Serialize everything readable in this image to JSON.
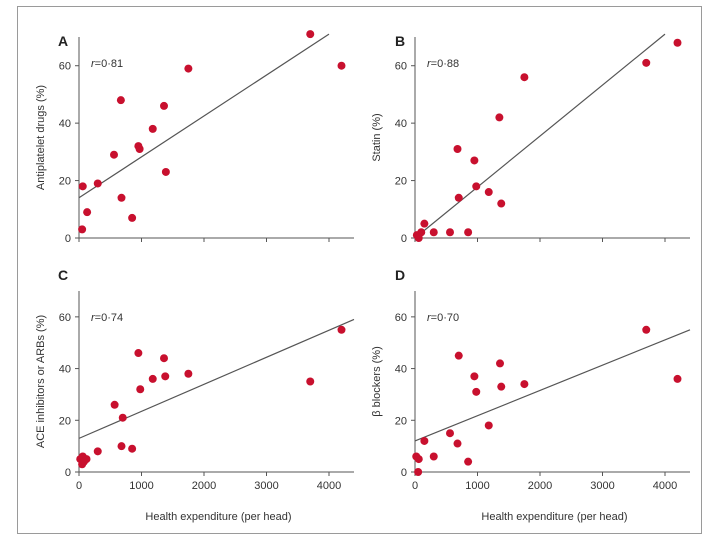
{
  "colors": {
    "point": "#c8102e",
    "line": "#555555",
    "axis": "#555555"
  },
  "chart_data": [
    {
      "type": "scatter",
      "panel": "A",
      "r_prefix": "r",
      "r_value": "=0·81",
      "ylabel": "Antiplatelet drugs (%)",
      "xlabel": "",
      "xlim": [
        0,
        4400
      ],
      "ylim": [
        0,
        70
      ],
      "xticks": [
        0,
        1000,
        2000,
        3000,
        4000
      ],
      "yticks": [
        0,
        20,
        40,
        60
      ],
      "xticks_shown": false,
      "x": [
        50,
        60,
        130,
        300,
        560,
        670,
        680,
        850,
        950,
        970,
        1180,
        1360,
        1390,
        1750,
        3700,
        4200
      ],
      "y": [
        3,
        18,
        9,
        19,
        29,
        48,
        14,
        7,
        32,
        31,
        38,
        46,
        23,
        59,
        71,
        60
      ],
      "fit": {
        "x": [
          0,
          4000
        ],
        "y": [
          14,
          71
        ]
      }
    },
    {
      "type": "scatter",
      "panel": "B",
      "r_prefix": "r",
      "r_value": "=0·88",
      "ylabel": "Statin (%)",
      "xlabel": "",
      "xlim": [
        0,
        4400
      ],
      "ylim": [
        0,
        70
      ],
      "xticks": [
        0,
        1000,
        2000,
        3000,
        4000
      ],
      "yticks": [
        0,
        20,
        40,
        60
      ],
      "xticks_shown": false,
      "x": [
        30,
        60,
        100,
        150,
        300,
        560,
        680,
        700,
        850,
        950,
        980,
        1180,
        1350,
        1380,
        1750,
        3700,
        4200
      ],
      "y": [
        1,
        0,
        2,
        5,
        2,
        2,
        31,
        14,
        2,
        27,
        18,
        16,
        42,
        12,
        56,
        61,
        68
      ],
      "fit": {
        "x": [
          0,
          4000
        ],
        "y": [
          0,
          71
        ]
      }
    },
    {
      "type": "scatter",
      "panel": "C",
      "r_prefix": "r",
      "r_value": "=0·74",
      "ylabel": "ACE inhibitors or ARBs (%)",
      "xlabel": "Health expenditure (per head)",
      "xlim": [
        0,
        4400
      ],
      "ylim": [
        0,
        70
      ],
      "xticks": [
        0,
        1000,
        2000,
        3000,
        4000
      ],
      "yticks": [
        0,
        20,
        40,
        60
      ],
      "xticks_shown": true,
      "x": [
        20,
        50,
        60,
        80,
        120,
        300,
        570,
        680,
        700,
        850,
        950,
        980,
        1180,
        1360,
        1380,
        1750,
        3700,
        4200
      ],
      "y": [
        5,
        3,
        6,
        4,
        5,
        8,
        26,
        10,
        21,
        9,
        46,
        32,
        36,
        44,
        37,
        38,
        35,
        55
      ],
      "fit": {
        "x": [
          0,
          4400
        ],
        "y": [
          13,
          59
        ]
      }
    },
    {
      "type": "scatter",
      "panel": "D",
      "r_prefix": "r",
      "r_value": "=0·70",
      "ylabel": "β blockers (%)",
      "xlabel": "Health expenditure (per head)",
      "xlim": [
        0,
        4400
      ],
      "ylim": [
        0,
        70
      ],
      "xticks": [
        0,
        1000,
        2000,
        3000,
        4000
      ],
      "yticks": [
        0,
        20,
        40,
        60
      ],
      "xticks_shown": true,
      "x": [
        20,
        50,
        60,
        150,
        300,
        560,
        680,
        700,
        850,
        950,
        980,
        1180,
        1360,
        1380,
        1750,
        3700,
        4200
      ],
      "y": [
        6,
        0,
        5,
        12,
        6,
        15,
        11,
        45,
        4,
        37,
        31,
        18,
        42,
        33,
        34,
        55,
        36
      ],
      "fit": {
        "x": [
          0,
          4400
        ],
        "y": [
          12,
          55
        ]
      }
    }
  ]
}
